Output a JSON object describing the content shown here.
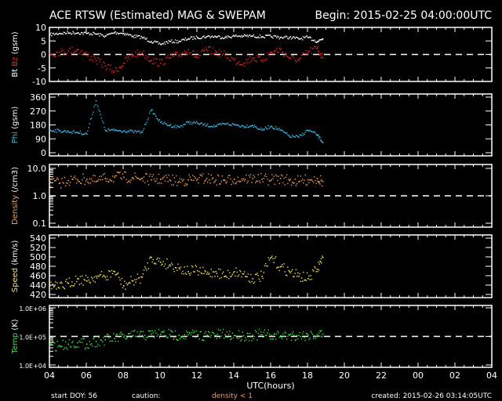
{
  "header": {
    "title": "ACE RTSW (Estimated) MAG & SWEPAM",
    "begin": "Begin: 2015-02-25 04:00:00UTC"
  },
  "footer": {
    "start_doy": "start DOY:  56",
    "caution": "caution:",
    "density_note": "density < 1",
    "created": "created: 2015-02-26 03:14:05UTC"
  },
  "chart_data": {
    "type": "scatter",
    "xlabel": "UTC(hours)",
    "x_range_hours": [
      0,
      24
    ],
    "x_tick_labels": [
      "04",
      "06",
      "08",
      "10",
      "12",
      "14",
      "16",
      "18",
      "20",
      "22",
      "00",
      "02",
      "04"
    ],
    "panels": [
      {
        "id": "mag",
        "ylabel_parts": [
          {
            "text": "Bt",
            "color": "#ffffff"
          },
          {
            "text": "Bz",
            "color": "#ff2020"
          },
          {
            "text": "(gsm)",
            "color": "#ffffff"
          }
        ],
        "scale": "linear",
        "ylim": [
          -10,
          10
        ],
        "ticks": [
          {
            "v": 10,
            "l": "10"
          },
          {
            "v": 5,
            "l": "5"
          },
          {
            "v": 0,
            "l": "0"
          },
          {
            "v": -5,
            "l": "-5"
          },
          {
            "v": -10,
            "l": "-10"
          }
        ],
        "ref_line": 0,
        "series": [
          {
            "name": "Bt",
            "color": "#ffffff",
            "x": [
              0,
              0.5,
              1,
              1.5,
              2,
              2.5,
              3,
              3.5,
              4,
              4.5,
              5,
              5.5,
              6,
              6.5,
              7,
              7.5,
              8,
              8.5,
              9,
              9.5,
              10,
              10.5,
              11,
              11.5,
              12,
              12.5,
              13,
              13.5,
              14,
              14.5,
              14.8
            ],
            "y": [
              7.5,
              8,
              8.2,
              8.2,
              8,
              7.8,
              7,
              8.3,
              8,
              7,
              6.5,
              5,
              4,
              5,
              5,
              6,
              6.5,
              6.8,
              6.8,
              6.5,
              7,
              7,
              7,
              6.8,
              6.8,
              6.5,
              6.5,
              6,
              6.5,
              5,
              6
            ]
          },
          {
            "name": "Bz",
            "color": "#e02020",
            "x": [
              0,
              0.5,
              1,
              1.5,
              2,
              2.5,
              3,
              3.5,
              4,
              4.5,
              5,
              5.5,
              6,
              6.5,
              7,
              7.5,
              8,
              8.5,
              9,
              9.5,
              10,
              10.5,
              11,
              11.5,
              12,
              12.5,
              13,
              13.5,
              14,
              14.5,
              14.8
            ],
            "y": [
              0.5,
              1,
              1.5,
              2,
              0,
              -2,
              -4,
              -6,
              -3,
              0,
              1,
              -2,
              -3,
              -1,
              0,
              2,
              -1,
              2,
              1,
              0,
              -2,
              -3,
              -1,
              -2,
              1,
              2,
              -1,
              -2,
              1,
              2.5,
              -1
            ]
          }
        ]
      },
      {
        "id": "phi",
        "ylabel_parts": [
          {
            "text": "Phi",
            "color": "#40b8e0"
          },
          {
            "text": "(gsm)",
            "color": "#ffffff"
          }
        ],
        "scale": "linear",
        "ylim": [
          0,
          360
        ],
        "ticks": [
          {
            "v": 360,
            "l": "360"
          },
          {
            "v": 270,
            "l": "270"
          },
          {
            "v": 180,
            "l": "180"
          },
          {
            "v": 90,
            "l": "90"
          },
          {
            "v": 0,
            "l": "0"
          }
        ],
        "series": [
          {
            "name": "Phi",
            "color": "#40b8e0",
            "x": [
              0,
              0.5,
              1,
              1.5,
              2,
              2.5,
              3,
              3.5,
              4,
              4.5,
              5,
              5.5,
              6,
              6.5,
              7,
              7.5,
              8,
              8.5,
              9,
              9.5,
              10,
              10.5,
              11,
              11.5,
              12,
              12.5,
              13,
              13.5,
              14,
              14.5,
              14.8
            ],
            "y": [
              150,
              145,
              140,
              135,
              125,
              340,
              150,
              148,
              145,
              140,
              135,
              280,
              200,
              180,
              170,
              200,
              195,
              180,
              175,
              190,
              185,
              175,
              180,
              150,
              175,
              150,
              110,
              105,
              150,
              120,
              70
            ]
          }
        ]
      },
      {
        "id": "density",
        "ylabel_parts": [
          {
            "text": "Density",
            "color": "#f0a050"
          },
          {
            "text": "(/cm3)",
            "color": "#ffffff"
          }
        ],
        "scale": "log",
        "ylim": [
          0.1,
          10
        ],
        "ticks": [
          {
            "v": 10,
            "l": "10.0"
          },
          {
            "v": 1,
            "l": "1.0"
          },
          {
            "v": 0.1,
            "l": "0.1"
          }
        ],
        "ref_line": 1,
        "series": [
          {
            "name": "Density",
            "color": "#f0a050",
            "x": [
              0,
              0.5,
              1,
              1.5,
              2,
              2.5,
              3,
              3.5,
              4,
              4.5,
              5,
              5.5,
              6,
              6.5,
              7,
              7.5,
              8,
              8.5,
              9,
              9.5,
              10,
              10.5,
              11,
              11.5,
              12,
              12.5,
              13,
              13.5,
              14,
              14.5,
              14.8
            ],
            "y": [
              3.5,
              3,
              3.8,
              4,
              4.2,
              3.5,
              4.5,
              5,
              5,
              4.8,
              4.5,
              4,
              4.2,
              4,
              3.5,
              4,
              4.2,
              4.5,
              4,
              3.8,
              4.2,
              4.4,
              4.5,
              4.2,
              4,
              4.5,
              3.8,
              3.5,
              4,
              4.5,
              3.5
            ]
          }
        ]
      },
      {
        "id": "speed",
        "ylabel_parts": [
          {
            "text": "Speed",
            "color": "#f0e060"
          },
          {
            "text": "(km/s)",
            "color": "#ffffff"
          }
        ],
        "scale": "linear",
        "ylim": [
          420,
          540
        ],
        "ticks": [
          {
            "v": 540,
            "l": "540"
          },
          {
            "v": 520,
            "l": "520"
          },
          {
            "v": 500,
            "l": "500"
          },
          {
            "v": 480,
            "l": "480"
          },
          {
            "v": 460,
            "l": "460"
          },
          {
            "v": 440,
            "l": "440"
          },
          {
            "v": 420,
            "l": "420"
          }
        ],
        "series": [
          {
            "name": "Speed",
            "color": "#f0e060",
            "x": [
              0,
              0.5,
              1,
              1.5,
              2,
              2.5,
              3,
              3.5,
              4,
              4.5,
              5,
              5.5,
              6,
              6.5,
              7,
              7.5,
              8,
              8.5,
              9,
              9.5,
              10,
              10.5,
              11,
              11.5,
              12,
              12.5,
              13,
              13.5,
              14,
              14.5,
              14.8
            ],
            "y": [
              440,
              435,
              445,
              455,
              450,
              460,
              458,
              470,
              440,
              450,
              458,
              500,
              490,
              485,
              478,
              470,
              472,
              465,
              470,
              460,
              470,
              465,
              455,
              460,
              500,
              480,
              470,
              460,
              455,
              475,
              500
            ]
          }
        ]
      },
      {
        "id": "temp",
        "ylabel_parts": [
          {
            "text": "Temp",
            "color": "#40e040"
          },
          {
            "text": "(K)",
            "color": "#ffffff"
          }
        ],
        "scale": "log",
        "ylim": [
          10000,
          1000000
        ],
        "ticks": [
          {
            "v": 1000000,
            "l": "1.0E+06"
          },
          {
            "v": 100000,
            "l": "1.0E+05"
          },
          {
            "v": 10000,
            "l": "1.0E+04"
          }
        ],
        "ref_line": 100000,
        "series": [
          {
            "name": "Temp",
            "color": "#40e040",
            "x": [
              0,
              0.5,
              1,
              1.5,
              2,
              2.5,
              3,
              3.5,
              4,
              4.5,
              5,
              5.5,
              6,
              6.5,
              7,
              7.5,
              8,
              8.5,
              9,
              9.5,
              10,
              10.5,
              11,
              11.5,
              12,
              12.5,
              13,
              13.5,
              14,
              14.5,
              14.8
            ],
            "y": [
              50000,
              50000,
              56000,
              63000,
              56000,
              70000,
              80000,
              89000,
              100000,
              112000,
              112000,
              126000,
              126000,
              120000,
              115000,
              120000,
              118000,
              112000,
              115000,
              120000,
              112000,
              110000,
              115000,
              120000,
              112000,
              110000,
              115000,
              112000,
              118000,
              120000,
              125000
            ]
          }
        ]
      }
    ]
  }
}
